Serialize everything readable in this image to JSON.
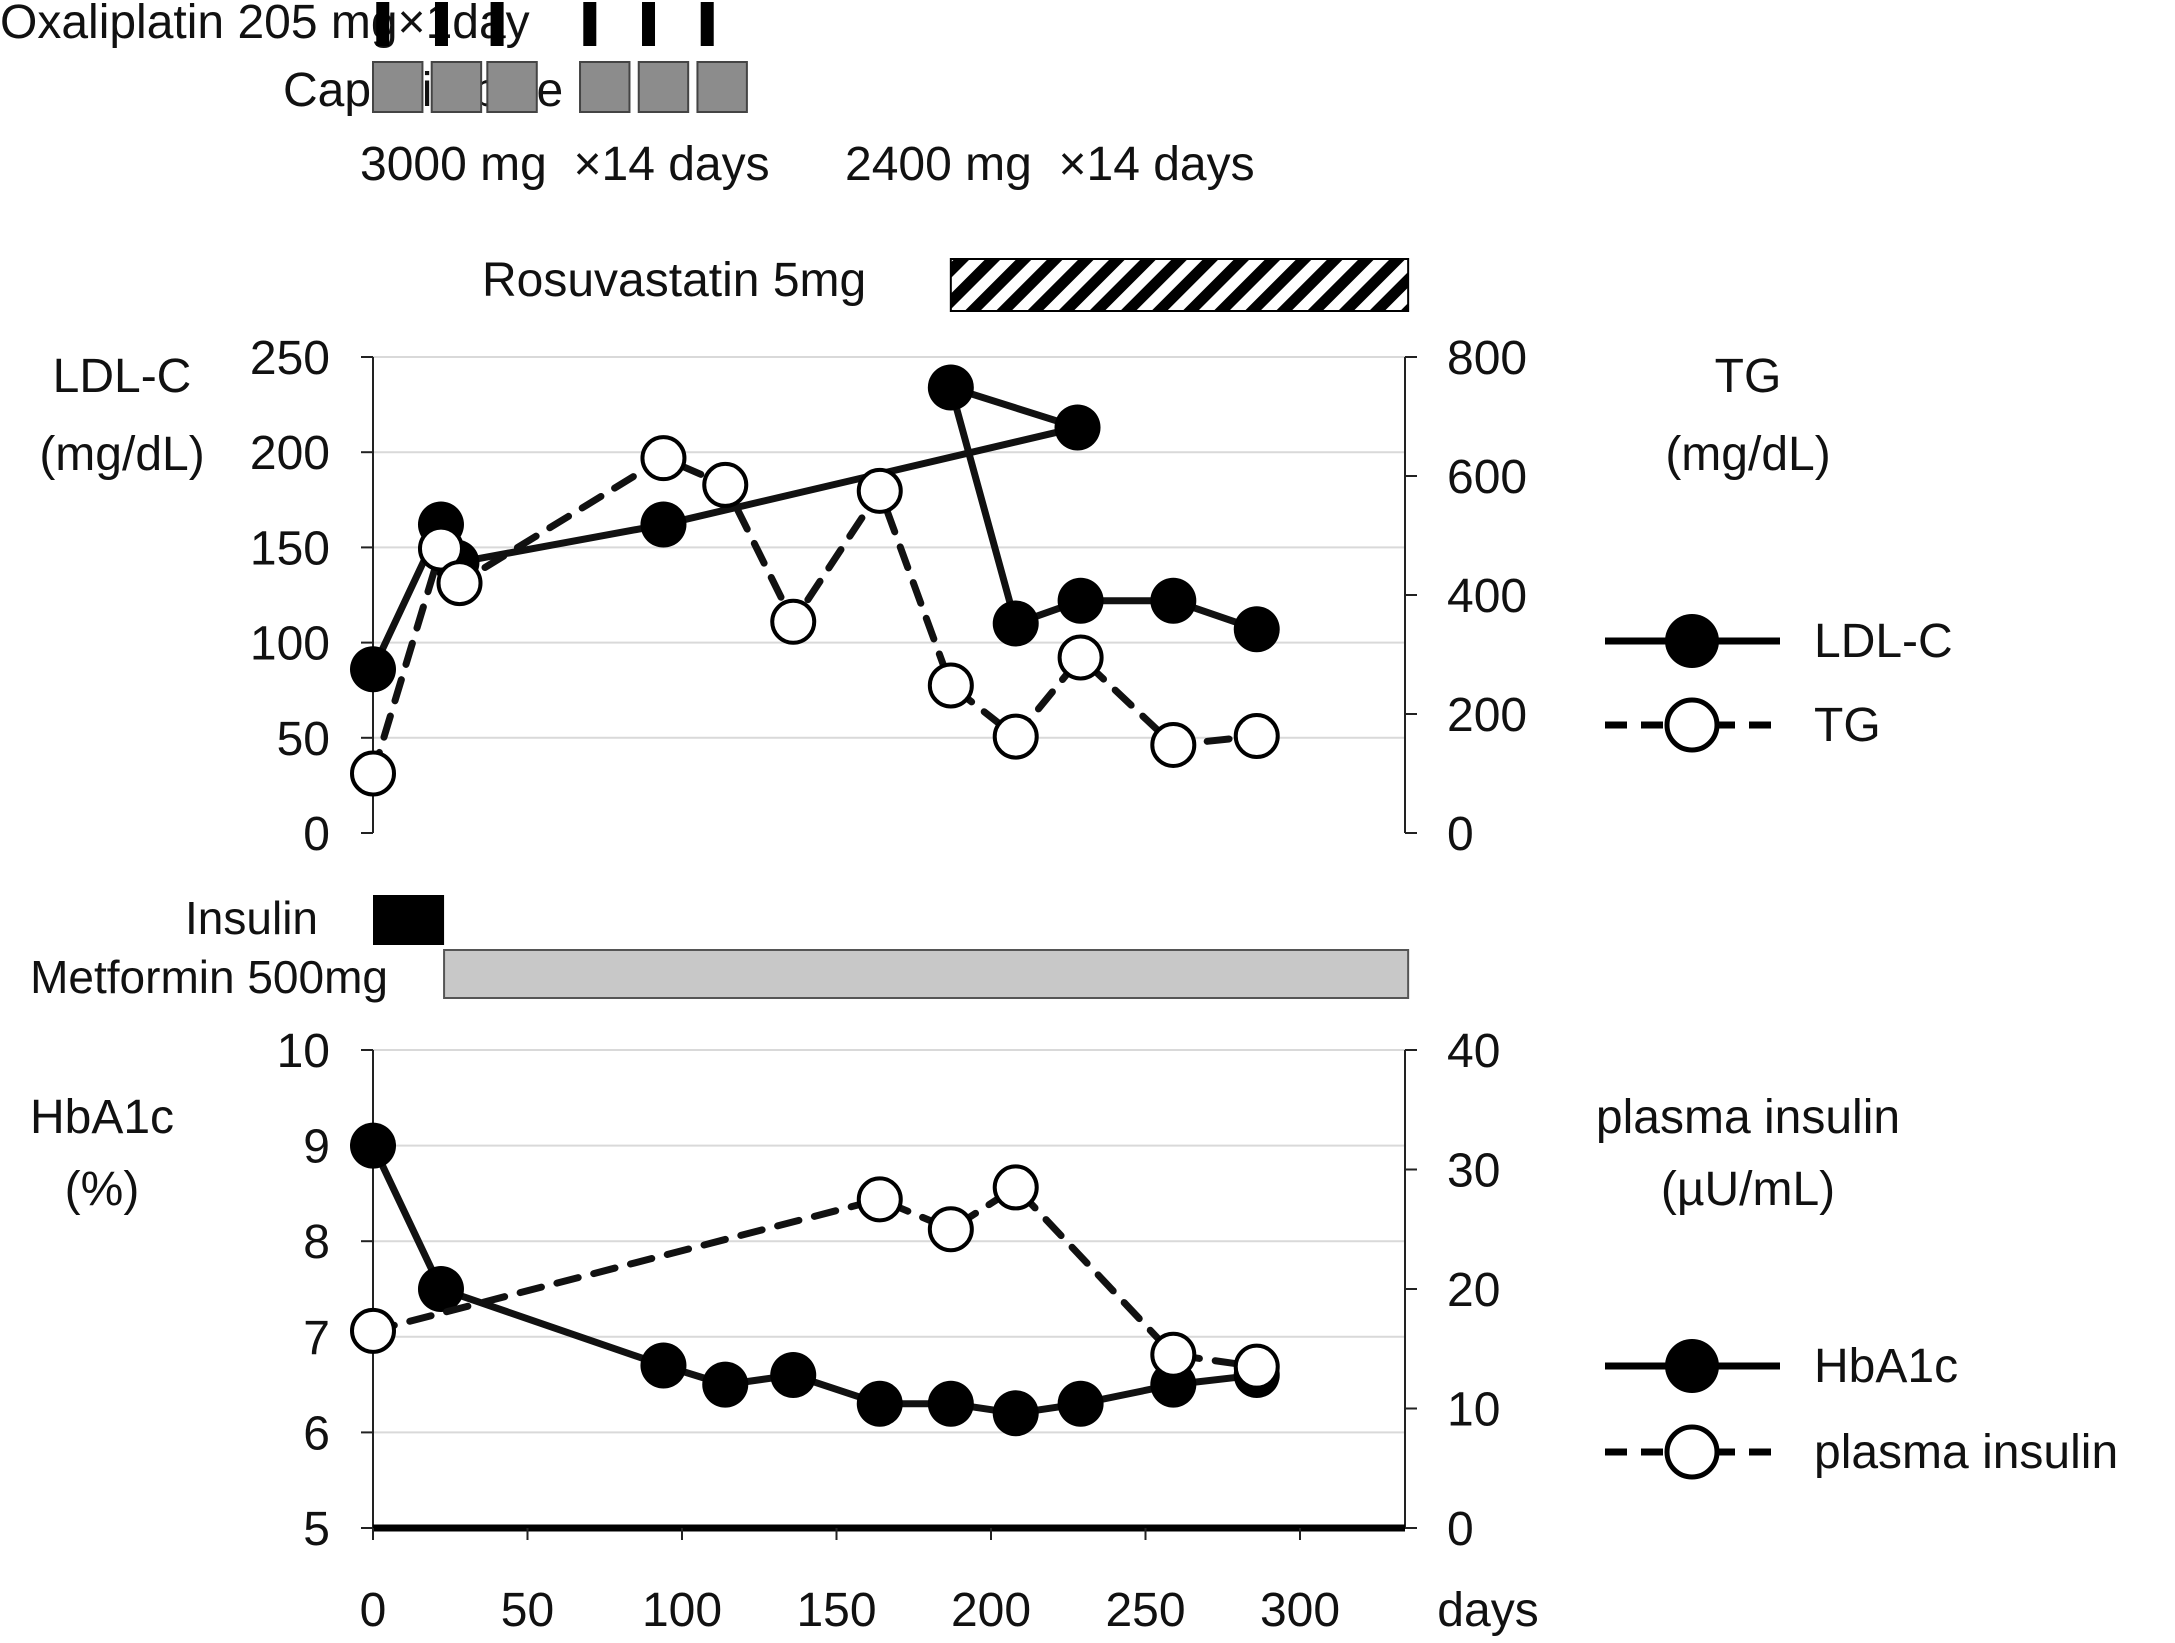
{
  "colors": {
    "ink": "#111111",
    "grid": "#d9d9d9",
    "capecitabine_fill": "#8c8c8c",
    "metformin_fill": "#c8c8c8",
    "insulin_fill": "#000000",
    "open_marker_fill": "#ffffff"
  },
  "regimen": {
    "oxaliplatin_label": "Oxaliplatin 205 mg×1day",
    "capecitabine_label": "Capecitabine",
    "dose1_label": "3000 mg  ×14 days",
    "dose2_label": "2400 mg  ×14 days",
    "rosuvastatin_label": "Rosuvastatin 5mg",
    "insulin_label": "Insulin",
    "metformin_label": "Metformin 500mg",
    "oxaliplatin_doses_days": [
      3,
      22,
      40,
      70,
      89,
      108
    ],
    "capecitabine_courses_days": [
      [
        0,
        16
      ],
      [
        19,
        35
      ],
      [
        37,
        53
      ],
      [
        67,
        83
      ],
      [
        86,
        102
      ],
      [
        105,
        121
      ]
    ],
    "rosuvastatin_days": [
      187,
      335
    ],
    "insulin_days": [
      0,
      23
    ],
    "metformin_days": [
      23,
      335
    ]
  },
  "x_axis": {
    "unit_label": "days",
    "ticks": [
      0,
      50,
      100,
      150,
      200,
      250,
      300
    ],
    "tick_labels": [
      "0",
      "50",
      "100",
      "150",
      "200",
      "250",
      "300"
    ],
    "range": [
      0,
      335
    ]
  },
  "chart_data": [
    {
      "type": "line",
      "title": "",
      "ylabel_left": [
        "LDL-C",
        "(mg/dL)"
      ],
      "ylabel_right": [
        "TG",
        "(mg/dL)"
      ],
      "ylim_left": [
        0,
        250
      ],
      "ylim_right": [
        0,
        800
      ],
      "yticks_left": [
        0,
        50,
        100,
        150,
        200,
        250
      ],
      "yticks_right": [
        0,
        200,
        400,
        600,
        800
      ],
      "grid": true,
      "legend_position": "right",
      "series": [
        {
          "name": "LDL-C",
          "axis": "left",
          "style": "solid-filled",
          "x": [
            0,
            22,
            27,
            94,
            228,
            187,
            208,
            229,
            259,
            286
          ],
          "y": [
            86,
            162,
            142,
            162,
            213,
            234,
            110,
            122,
            122,
            107
          ]
        },
        {
          "name": "TG",
          "axis": "right",
          "style": "dashed-open",
          "x": [
            0,
            22,
            28,
            94,
            114,
            136,
            164,
            187,
            208,
            229,
            259,
            286
          ],
          "y": [
            100,
            478,
            420,
            630,
            585,
            355,
            575,
            248,
            162,
            295,
            148,
            163
          ]
        }
      ]
    },
    {
      "type": "line",
      "title": "",
      "ylabel_left": [
        "HbA1c",
        "(%)"
      ],
      "ylabel_right": [
        "plasma insulin",
        "(µU/mL)"
      ],
      "ylim_left": [
        5,
        10
      ],
      "ylim_right": [
        0,
        40
      ],
      "yticks_left": [
        5,
        6,
        7,
        8,
        9,
        10
      ],
      "yticks_right": [
        0,
        10,
        20,
        30,
        40
      ],
      "grid": true,
      "legend_position": "right",
      "series": [
        {
          "name": "HbA1c",
          "axis": "left",
          "style": "solid-filled",
          "x": [
            0,
            22,
            94,
            114,
            136,
            164,
            187,
            208,
            229,
            259,
            286
          ],
          "y": [
            9.0,
            7.5,
            6.7,
            6.5,
            6.6,
            6.3,
            6.3,
            6.2,
            6.3,
            6.5,
            6.6
          ]
        },
        {
          "name": "plasma insulin",
          "axis": "right",
          "style": "dashed-open",
          "x": [
            0,
            164,
            187,
            208,
            259,
            286
          ],
          "y": [
            16.5,
            27.5,
            25.0,
            28.5,
            14.5,
            13.5
          ]
        }
      ]
    }
  ]
}
